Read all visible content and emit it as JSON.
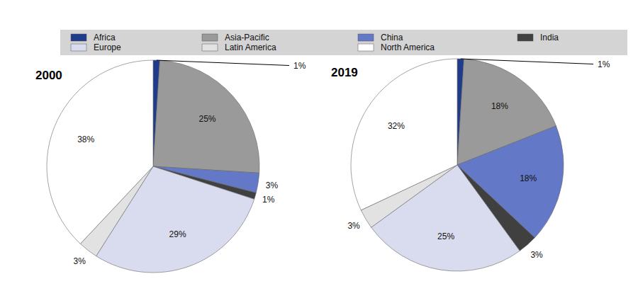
{
  "chart_data": [
    {
      "type": "pie",
      "title": "2000",
      "categories": [
        "Africa",
        "Asia-Pacific",
        "China",
        "India",
        "Europe",
        "Latin America",
        "North America"
      ],
      "values": [
        1,
        25,
        3,
        1,
        29,
        3,
        38
      ],
      "value_labels": [
        "1%",
        "25%",
        "3%",
        "1%",
        "29%",
        "3%",
        "38%"
      ],
      "colors": [
        "#1f3b8c",
        "#9a9a9a",
        "#6478c8",
        "#404040",
        "#d9dcee",
        "#e2e2e2",
        "#ffffff"
      ],
      "data_labels": true,
      "legend": "top"
    },
    {
      "type": "pie",
      "title": "2019",
      "categories": [
        "Africa",
        "Asia-Pacific",
        "China",
        "India",
        "Europe",
        "Latin America",
        "North America"
      ],
      "values": [
        1,
        18,
        18,
        3,
        25,
        3,
        32
      ],
      "value_labels": [
        "1%",
        "18%",
        "18%",
        "3%",
        "25%",
        "3%",
        "32%"
      ],
      "colors": [
        "#1f3b8c",
        "#9a9a9a",
        "#6478c8",
        "#404040",
        "#d9dcee",
        "#e2e2e2",
        "#ffffff"
      ],
      "data_labels": true
    }
  ]
}
